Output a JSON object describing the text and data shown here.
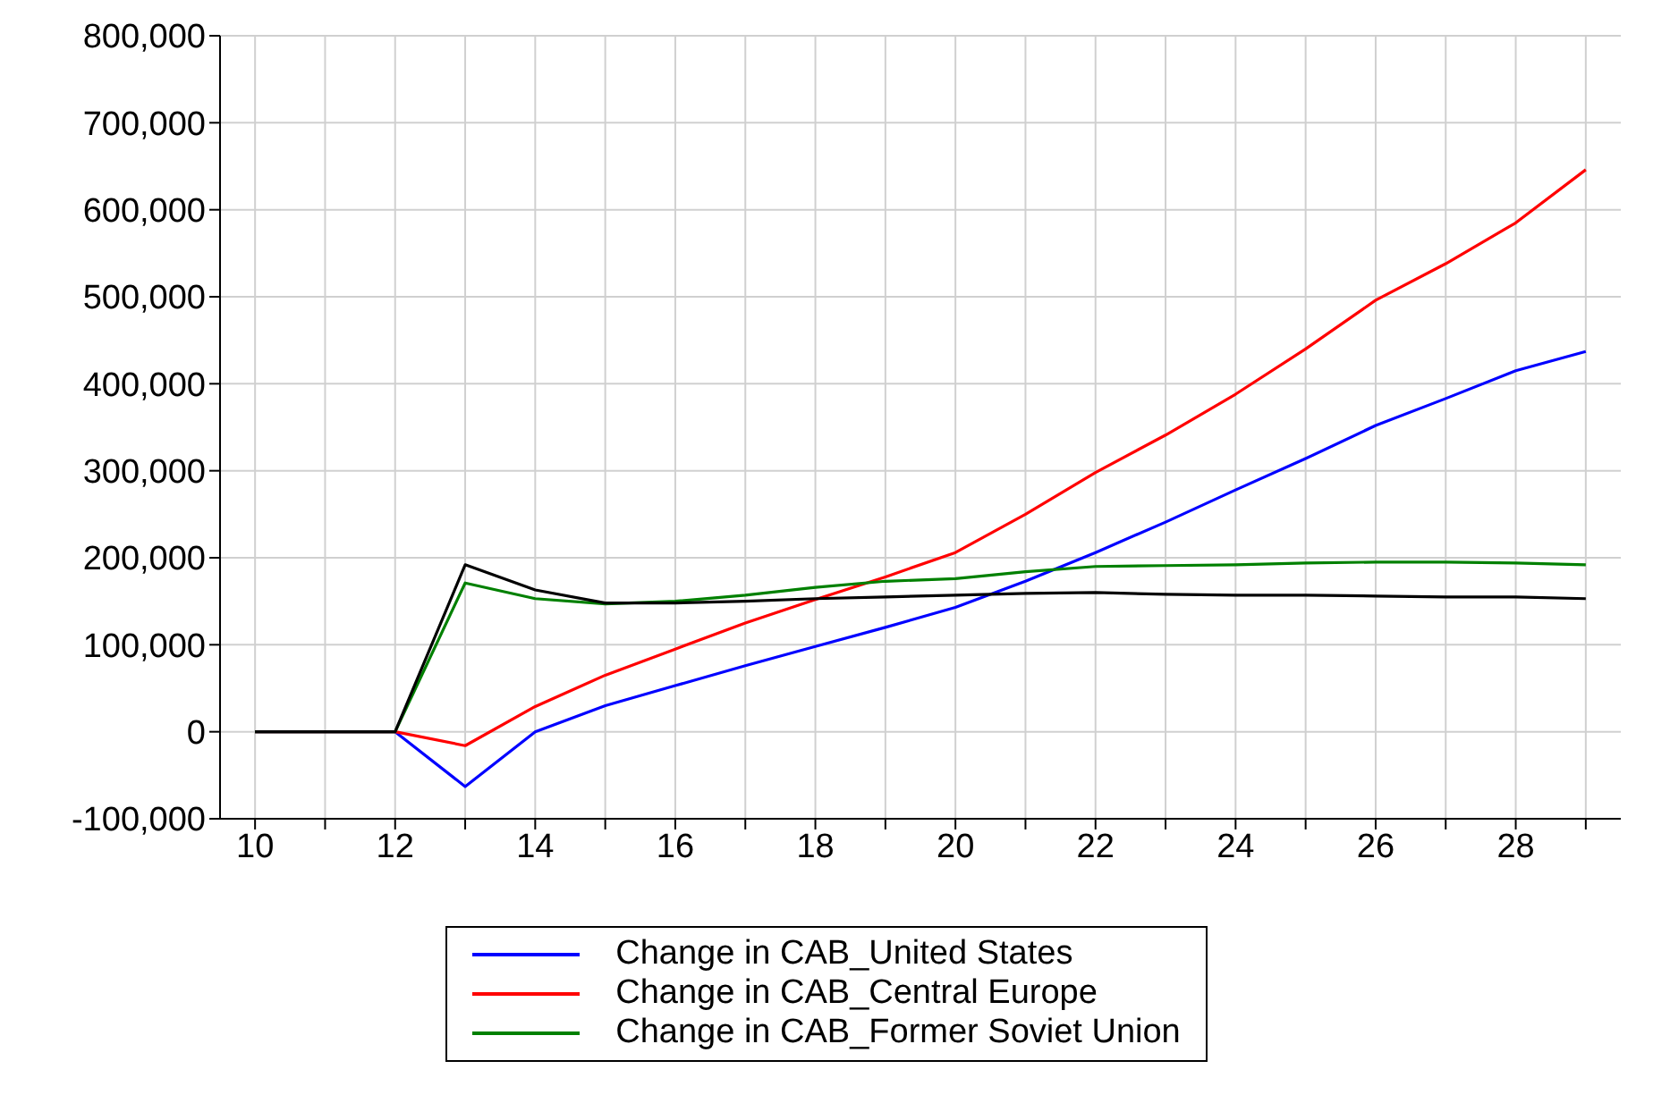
{
  "chart_data": {
    "type": "line",
    "x": [
      10,
      11,
      12,
      13,
      14,
      15,
      16,
      17,
      18,
      19,
      20,
      21,
      22,
      23,
      24,
      25,
      26,
      27,
      28,
      29
    ],
    "series": [
      {
        "name": "Change in CAB_United States",
        "color": "#0000ff",
        "values": [
          0,
          0,
          0,
          -63000,
          0,
          30000,
          53000,
          76000,
          98000,
          120000,
          143000,
          173000,
          206000,
          241000,
          278000,
          314000,
          352000,
          383000,
          415000,
          437000
        ]
      },
      {
        "name": "Change in CAB_Central Europe",
        "color": "#ff0000",
        "values": [
          0,
          0,
          0,
          -16000,
          29000,
          65000,
          95000,
          125000,
          152000,
          178000,
          206000,
          250000,
          298000,
          341000,
          388000,
          440000,
          496000,
          538000,
          585000,
          646000
        ]
      },
      {
        "name": "Change in CAB_Former Soviet Union",
        "color": "#008000",
        "values": [
          0,
          0,
          0,
          171000,
          153000,
          147000,
          150000,
          157000,
          166000,
          173000,
          176000,
          184000,
          190000,
          191000,
          192000,
          194000,
          195000,
          195000,
          194000,
          192000
        ]
      },
      {
        "color": "#000000",
        "values": [
          0,
          0,
          0,
          192000,
          163000,
          148000,
          148000,
          150000,
          153000,
          155000,
          157000,
          159000,
          160000,
          158000,
          157000,
          157000,
          156000,
          155000,
          155000,
          153000
        ]
      }
    ],
    "xlim": [
      9.5,
      29.5
    ],
    "xticks": [
      10,
      {
        "value": 11,
        "label": null
      },
      12,
      {
        "value": 13,
        "label": null
      },
      14,
      {
        "value": 15,
        "label": null
      },
      16,
      {
        "value": 17,
        "label": null
      },
      18,
      {
        "value": 19,
        "label": null
      },
      20,
      {
        "value": 21,
        "label": null
      },
      22,
      {
        "value": 23,
        "label": null
      },
      24,
      {
        "value": 25,
        "label": null
      },
      26,
      {
        "value": 27,
        "label": null
      },
      28,
      {
        "value": 29,
        "label": null
      }
    ],
    "ylim": [
      -100000,
      800000
    ],
    "yticks": [
      {
        "value": -100000,
        "label": "-100,000"
      },
      0,
      {
        "value": 100000,
        "label": "100,000"
      },
      {
        "value": 200000,
        "label": "200,000"
      },
      {
        "value": 300000,
        "label": "300,000"
      },
      {
        "value": 400000,
        "label": "400,000"
      },
      {
        "value": 500000,
        "label": "500,000"
      },
      {
        "value": 600000,
        "label": "600,000"
      },
      {
        "value": 700000,
        "label": "700,000"
      },
      {
        "value": 800000,
        "label": "800,000"
      }
    ],
    "grid": true,
    "legend": "bottom",
    "marker": "none",
    "line_style": "solid"
  }
}
